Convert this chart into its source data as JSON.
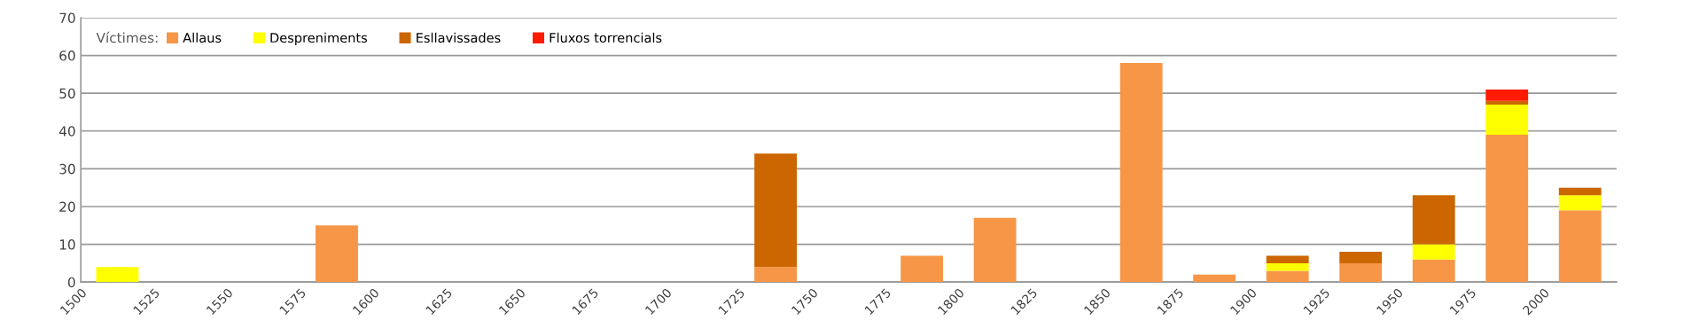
{
  "chart_data": {
    "type": "bar",
    "stacked": true,
    "legend_title": "Víctimes:",
    "legend": "top left",
    "grid": "y",
    "x": [
      1512.5,
      1537.5,
      1562.5,
      1587.5,
      1612.5,
      1637.5,
      1662.5,
      1687.5,
      1712.5,
      1737.5,
      1762.5,
      1787.5,
      1812.5,
      1837.5,
      1862.5,
      1887.5,
      1912.5,
      1937.5,
      1962.5,
      1987.5,
      2012.5
    ],
    "xlim": [
      1500,
      2025
    ],
    "xticks": [
      1500,
      1525,
      1550,
      1575,
      1600,
      1625,
      1650,
      1675,
      1700,
      1725,
      1750,
      1775,
      1800,
      1825,
      1850,
      1875,
      1900,
      1925,
      1950,
      1975,
      2000
    ],
    "ylim": [
      0,
      70
    ],
    "yticks": [
      0,
      10,
      20,
      30,
      40,
      50,
      60,
      70
    ],
    "series": [
      {
        "name": "Allaus",
        "color": "#f79646",
        "values": [
          null,
          null,
          null,
          15,
          null,
          null,
          null,
          null,
          null,
          4,
          null,
          7,
          17,
          null,
          58,
          2,
          3,
          5,
          6,
          39,
          19
        ]
      },
      {
        "name": "Despreniments",
        "color": "#ffff00",
        "values": [
          4,
          null,
          null,
          null,
          null,
          null,
          null,
          null,
          null,
          null,
          null,
          null,
          null,
          null,
          null,
          null,
          2,
          null,
          4,
          8,
          4
        ]
      },
      {
        "name": "Esllavissades",
        "color": "#cc6600",
        "values": [
          null,
          null,
          null,
          null,
          null,
          null,
          null,
          null,
          null,
          30,
          null,
          null,
          null,
          null,
          null,
          null,
          2,
          3,
          13,
          1,
          2
        ]
      },
      {
        "name": "Fluxos torrencials",
        "color": "#ff1a00",
        "values": [
          null,
          null,
          null,
          null,
          null,
          null,
          null,
          null,
          null,
          null,
          null,
          null,
          null,
          null,
          null,
          null,
          null,
          null,
          null,
          3,
          null
        ]
      }
    ]
  }
}
